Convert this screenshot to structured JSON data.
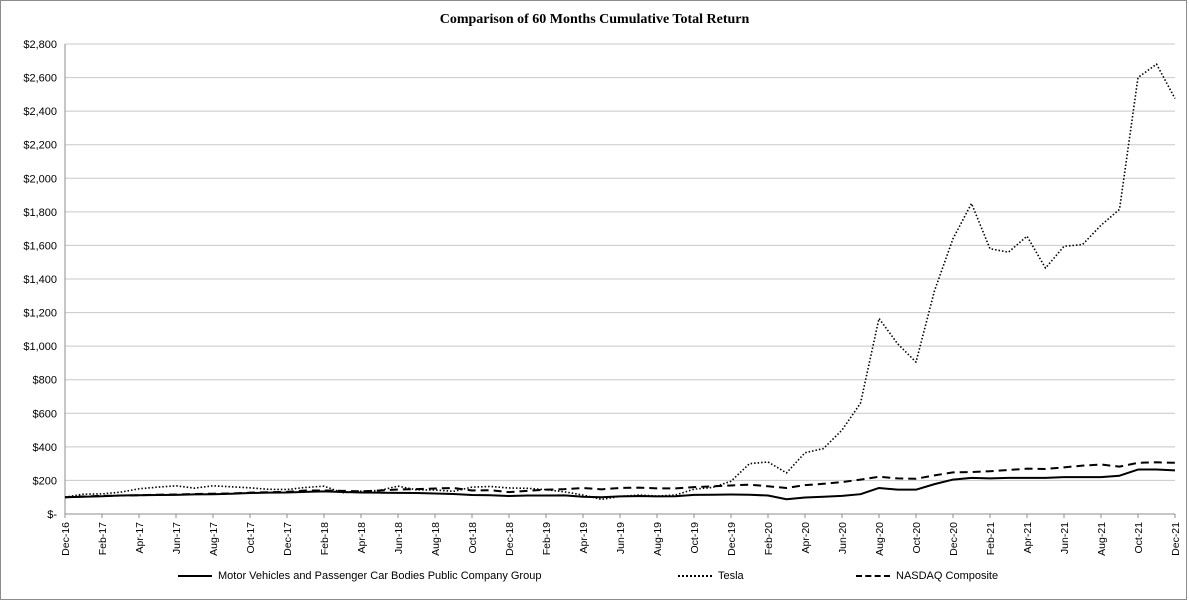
{
  "chart_data": {
    "type": "line",
    "title": "Comparison of 60 Months Cumulative Total Return",
    "xlabel": "",
    "ylabel": "",
    "ylim": [
      0,
      2800
    ],
    "yticks": [
      0,
      200,
      400,
      600,
      800,
      1000,
      1200,
      1400,
      1600,
      1800,
      2000,
      2200,
      2400,
      2600,
      2800
    ],
    "ytick_labels": [
      "$-",
      "$200",
      "$400",
      "$600",
      "$800",
      "$1,000",
      "$1,200",
      "$1,400",
      "$1,600",
      "$1,800",
      "$2,000",
      "$2,200",
      "$2,400",
      "$2,600",
      "$2,800"
    ],
    "x": [
      "Dec-16",
      "Jan-17",
      "Feb-17",
      "Mar-17",
      "Apr-17",
      "May-17",
      "Jun-17",
      "Jul-17",
      "Aug-17",
      "Sep-17",
      "Oct-17",
      "Nov-17",
      "Dec-17",
      "Jan-18",
      "Feb-18",
      "Mar-18",
      "Apr-18",
      "May-18",
      "Jun-18",
      "Jul-18",
      "Aug-18",
      "Sep-18",
      "Oct-18",
      "Nov-18",
      "Dec-18",
      "Jan-19",
      "Feb-19",
      "Mar-19",
      "Apr-19",
      "May-19",
      "Jun-19",
      "Jul-19",
      "Aug-19",
      "Sep-19",
      "Oct-19",
      "Nov-19",
      "Dec-19",
      "Jan-20",
      "Feb-20",
      "Mar-20",
      "Apr-20",
      "May-20",
      "Jun-20",
      "Jul-20",
      "Aug-20",
      "Sep-20",
      "Oct-20",
      "Nov-20",
      "Dec-20",
      "Jan-21",
      "Feb-21",
      "Mar-21",
      "Apr-21",
      "May-21",
      "Jun-21",
      "Jul-21",
      "Aug-21",
      "Sep-21",
      "Oct-21",
      "Nov-21",
      "Dec-21"
    ],
    "xtick_labels_every": 2,
    "grid": "horizontal",
    "legend_position": "bottom",
    "series": [
      {
        "name": "Motor Vehicles and Passenger Car Bodies Public Company Group",
        "style": "solid",
        "color": "#000000",
        "values": [
          100,
          103,
          106,
          110,
          112,
          113,
          114,
          117,
          118,
          121,
          125,
          127,
          128,
          132,
          135,
          131,
          128,
          127,
          126,
          125,
          122,
          119,
          113,
          112,
          107,
          110,
          110,
          111,
          103,
          100,
          105,
          107,
          105,
          106,
          114,
          115,
          116,
          115,
          110,
          88,
          98,
          103,
          108,
          118,
          155,
          145,
          145,
          178,
          205,
          215,
          212,
          215,
          215,
          215,
          220,
          220,
          220,
          228,
          265,
          265,
          260
        ]
      },
      {
        "name": "Tesla",
        "style": "dotted",
        "color": "#000000",
        "values": [
          100,
          118,
          120,
          130,
          150,
          160,
          168,
          154,
          168,
          162,
          156,
          147,
          146,
          158,
          166,
          127,
          136,
          140,
          166,
          144,
          143,
          135,
          160,
          164,
          155,
          153,
          145,
          132,
          113,
          87,
          105,
          113,
          107,
          113,
          148,
          158,
          195,
          300,
          310,
          245,
          365,
          390,
          500,
          660,
          1165,
          1015,
          905,
          1330,
          1640,
          1850,
          1580,
          1560,
          1655,
          1465,
          1595,
          1605,
          1720,
          1815,
          2600,
          2680,
          2475
        ]
      },
      {
        "name": "NASDAQ Composite",
        "style": "dashed",
        "color": "#000000",
        "values": [
          100,
          104,
          108,
          110,
          112,
          115,
          116,
          119,
          121,
          122,
          127,
          130,
          132,
          140,
          140,
          138,
          135,
          140,
          146,
          148,
          152,
          155,
          140,
          142,
          130,
          138,
          145,
          148,
          155,
          147,
          155,
          157,
          153,
          153,
          160,
          165,
          170,
          175,
          165,
          155,
          172,
          180,
          190,
          205,
          222,
          212,
          210,
          230,
          248,
          250,
          255,
          262,
          270,
          268,
          278,
          288,
          295,
          282,
          305,
          308,
          305
        ]
      }
    ]
  }
}
